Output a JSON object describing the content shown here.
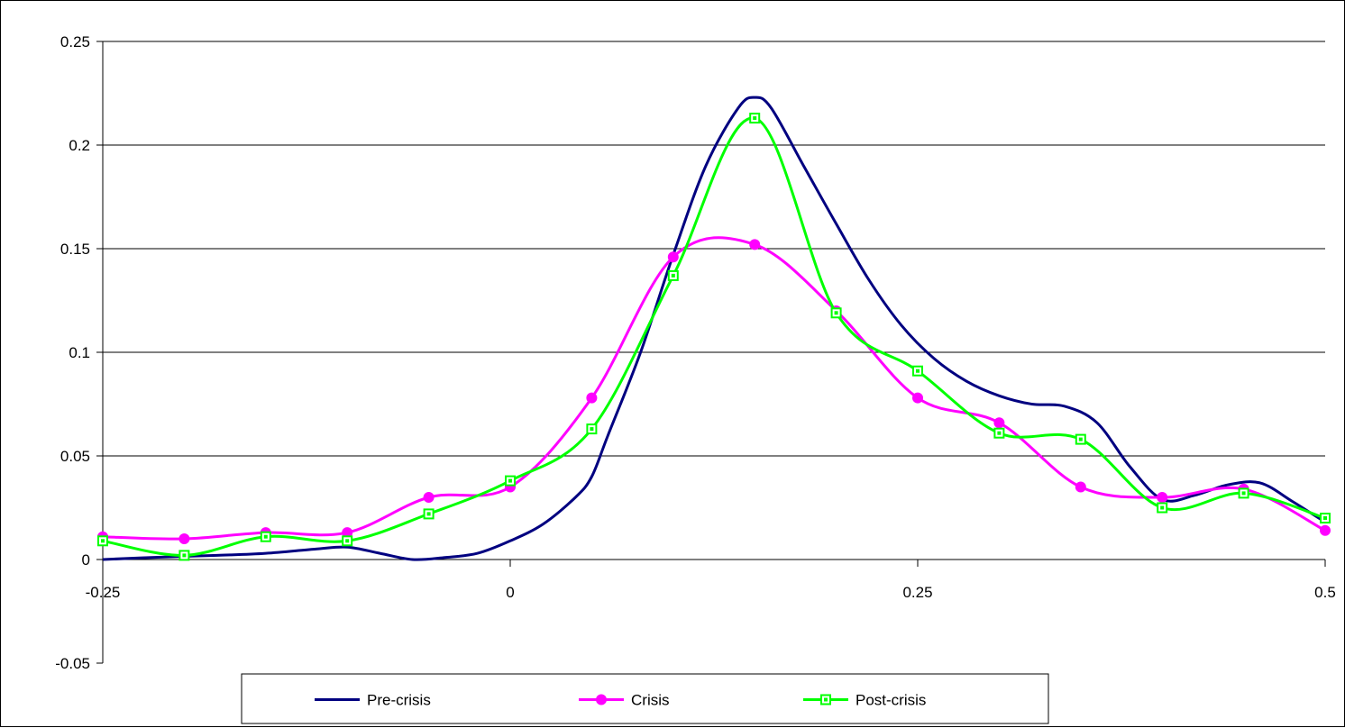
{
  "chart_data": {
    "type": "line",
    "title": "",
    "xlabel": "",
    "ylabel": "",
    "xlim": [
      -0.25,
      0.5
    ],
    "ylim": [
      -0.05,
      0.25
    ],
    "x_ticks": [
      -0.25,
      0,
      0.25,
      0.5
    ],
    "x_tick_labels": [
      "-0.25",
      "0",
      "0.25",
      "0.5"
    ],
    "y_ticks": [
      -0.05,
      0,
      0.05,
      0.1,
      0.15,
      0.2,
      0.25
    ],
    "y_tick_labels": [
      "-0.05",
      "0",
      "0.05",
      "0.1",
      "0.15",
      "0.2",
      "0.25"
    ],
    "grid": "horizontal",
    "legend_position": "bottom",
    "series": [
      {
        "name": "Pre-crisis",
        "color": "#000080",
        "marker": "none",
        "x": [
          -0.25,
          -0.22,
          -0.18,
          -0.15,
          -0.12,
          -0.1,
          -0.08,
          -0.06,
          -0.04,
          -0.02,
          0,
          0.02,
          0.04,
          0.05,
          0.06,
          0.08,
          0.1,
          0.12,
          0.14,
          0.15,
          0.16,
          0.18,
          0.2,
          0.22,
          0.24,
          0.26,
          0.28,
          0.3,
          0.32,
          0.34,
          0.36,
          0.38,
          0.4,
          0.42,
          0.44,
          0.46,
          0.48,
          0.5
        ],
        "y": [
          0,
          0.001,
          0.002,
          0.003,
          0.005,
          0.006,
          0.003,
          0.0,
          0.001,
          0.003,
          0.009,
          0.017,
          0.03,
          0.04,
          0.06,
          0.1,
          0.147,
          0.19,
          0.218,
          0.223,
          0.218,
          0.19,
          0.162,
          0.135,
          0.113,
          0.097,
          0.086,
          0.079,
          0.075,
          0.074,
          0.066,
          0.045,
          0.029,
          0.031,
          0.036,
          0.037,
          0.028,
          0.018
        ]
      },
      {
        "name": "Crisis",
        "color": "#ff00ff",
        "marker": "circle",
        "x": [
          -0.25,
          -0.2,
          -0.15,
          -0.1,
          -0.05,
          0,
          0.05,
          0.1,
          0.15,
          0.2,
          0.25,
          0.3,
          0.35,
          0.4,
          0.45,
          0.5
        ],
        "y": [
          0.011,
          0.01,
          0.013,
          0.013,
          0.03,
          0.035,
          0.078,
          0.146,
          0.152,
          0.12,
          0.078,
          0.066,
          0.035,
          0.03,
          0.034,
          0.014
        ]
      },
      {
        "name": "Post-crisis",
        "color": "#00ff00",
        "marker": "square",
        "x": [
          -0.25,
          -0.2,
          -0.15,
          -0.1,
          -0.05,
          0,
          0.05,
          0.1,
          0.15,
          0.2,
          0.25,
          0.3,
          0.35,
          0.4,
          0.45,
          0.5
        ],
        "y": [
          0.009,
          0.002,
          0.011,
          0.009,
          0.022,
          0.038,
          0.063,
          0.137,
          0.213,
          0.119,
          0.091,
          0.061,
          0.058,
          0.025,
          0.032,
          0.02
        ]
      }
    ]
  }
}
